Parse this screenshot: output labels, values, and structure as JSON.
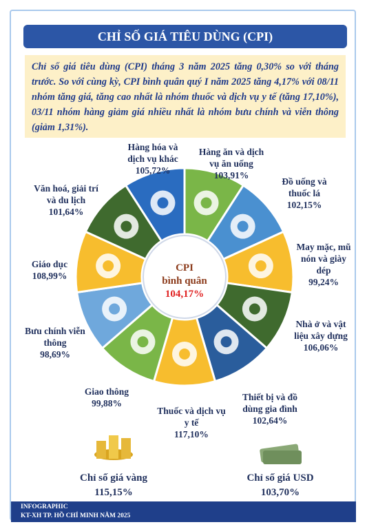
{
  "header": {
    "title": "CHỈ SỐ GIÁ TIÊU DÙNG (CPI)"
  },
  "intro": "Chỉ số giá tiêu dùng (CPI) tháng 3 năm 2025 tăng 0,30% so với tháng trước. So với cùng kỳ, CPI bình quân quý I năm 2025 tăng 4,17% với 08/11 nhóm tăng giá, tăng cao nhất là nhóm thuốc và dịch vụ y tế (tăng 17,10%), 03/11 nhóm hàng giảm giá nhiều nhất là nhóm bưu chính và viễn thông (giảm 1,31%).",
  "center": {
    "line1": "CPI",
    "line2": "bình quân",
    "value": "104,17%"
  },
  "segments": [
    {
      "label": "Hàng ăn và dịch vụ ăn uống",
      "value": "103,91%",
      "color": "#7ab648"
    },
    {
      "label": "Đồ uống và thuốc lá",
      "value": "102,15%",
      "color": "#4a90d0"
    },
    {
      "label": "May mặc, mũ nón và giày dép",
      "value": "99,24%",
      "color": "#f7bd2e"
    },
    {
      "label": "Nhà ở và vật liệu xây dựng",
      "value": "106,06%",
      "color": "#3f6a2e"
    },
    {
      "label": "Thiết bị và đồ dùng gia đình",
      "value": "102,64%",
      "color": "#2a5d9c"
    },
    {
      "label": "Thuốc và dịch vụ y tế",
      "value": "117,10%",
      "color": "#f7bd2e"
    },
    {
      "label": "Giao thông",
      "value": "99,88%",
      "color": "#7ab648"
    },
    {
      "label": "Bưu chính viễn thông",
      "value": "98,69%",
      "color": "#6fa8dc"
    },
    {
      "label": "Giáo dục",
      "value": "108,99%",
      "color": "#f7bd2e"
    },
    {
      "label": "Văn hoá, giải trí và du lịch",
      "value": "101,64%",
      "color": "#3f6a2e"
    },
    {
      "label": "Hàng hóa và dịch vụ khác",
      "value": "105,72%",
      "color": "#2a6cc0"
    }
  ],
  "extras": [
    {
      "label": "Chỉ số giá vàng",
      "value": "115,15%"
    },
    {
      "label": "Chỉ số giá USD",
      "value": "103,70%"
    }
  ],
  "footer": {
    "line1": "INFOGRAPHIC",
    "line2": "KT-XH TP. HỒ CHÍ MINH NĂM 2025"
  }
}
